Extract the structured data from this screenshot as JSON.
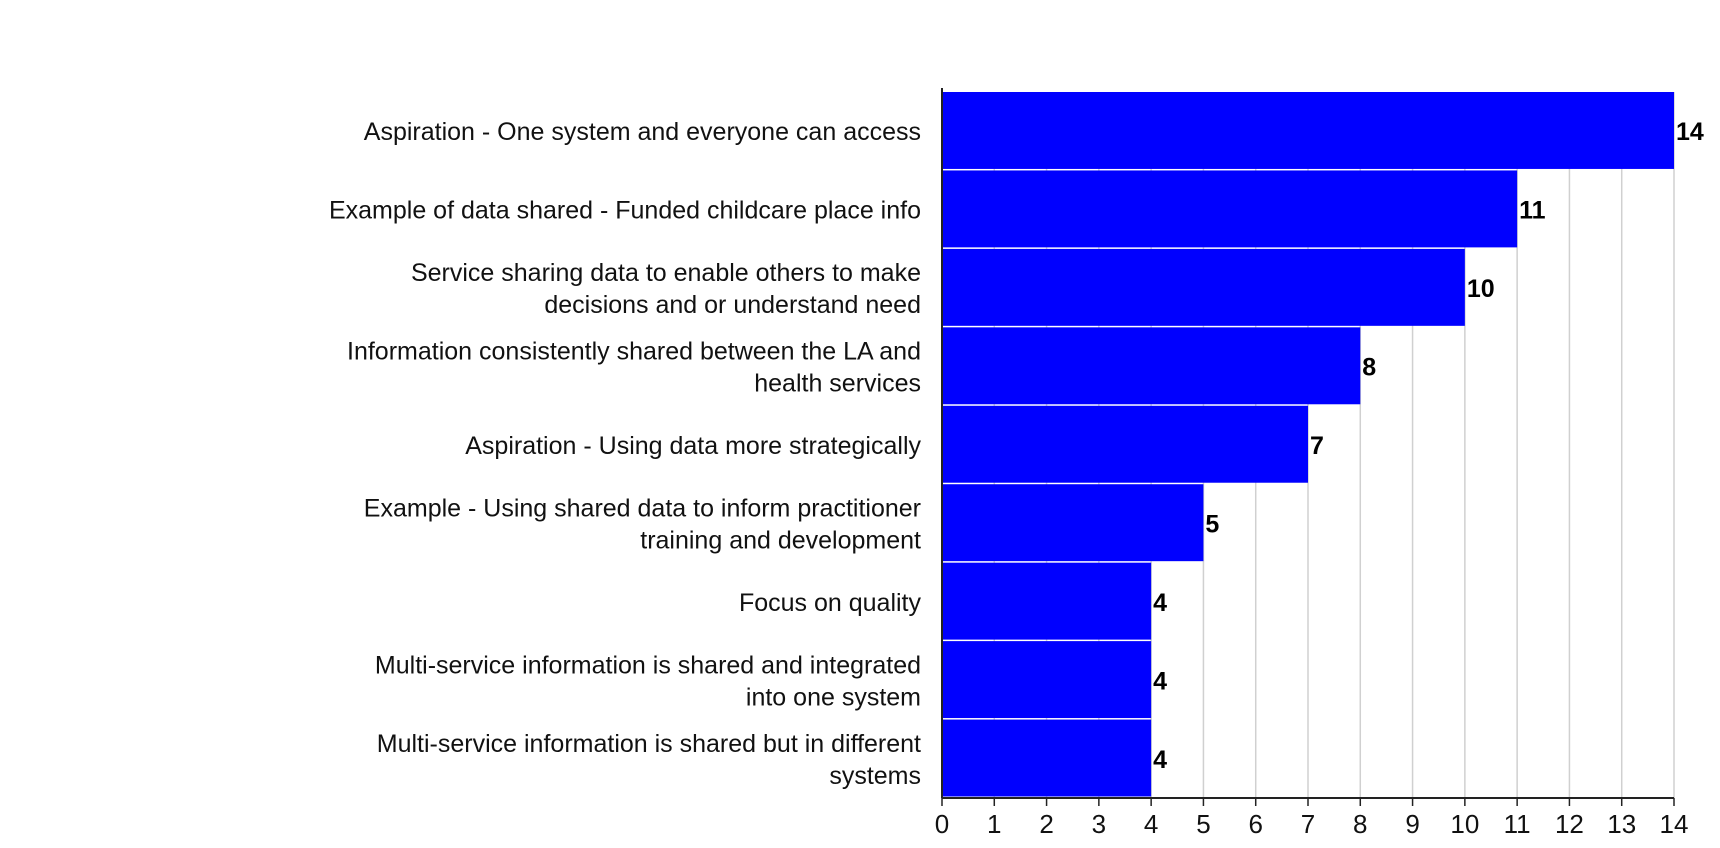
{
  "chart_data": {
    "type": "bar",
    "orientation": "horizontal",
    "title": "",
    "xlabel": "",
    "ylabel": "",
    "xlim": [
      0,
      14
    ],
    "ticks": [
      "0",
      "1",
      "2",
      "3",
      "4",
      "5",
      "6",
      "7",
      "8",
      "9",
      "10",
      "11",
      "12",
      "13",
      "14"
    ],
    "grid": true,
    "legend": "none",
    "bar_color": "#0000ff",
    "categories": [
      "Aspiration - One system and everyone can access",
      "Example of data shared - Funded childcare place info",
      "Service sharing data to enable others to make decisions and or understand need",
      "Information consistently shared between the LA and health services",
      "Aspiration - Using data more strategically",
      "Example - Using shared data to inform practitioner training and development",
      "Focus on quality",
      "Multi-service information is shared and integrated into one system",
      "Multi-service information is shared but in different systems"
    ],
    "values": [
      14,
      11,
      10,
      8,
      7,
      5,
      4,
      4,
      4
    ]
  }
}
